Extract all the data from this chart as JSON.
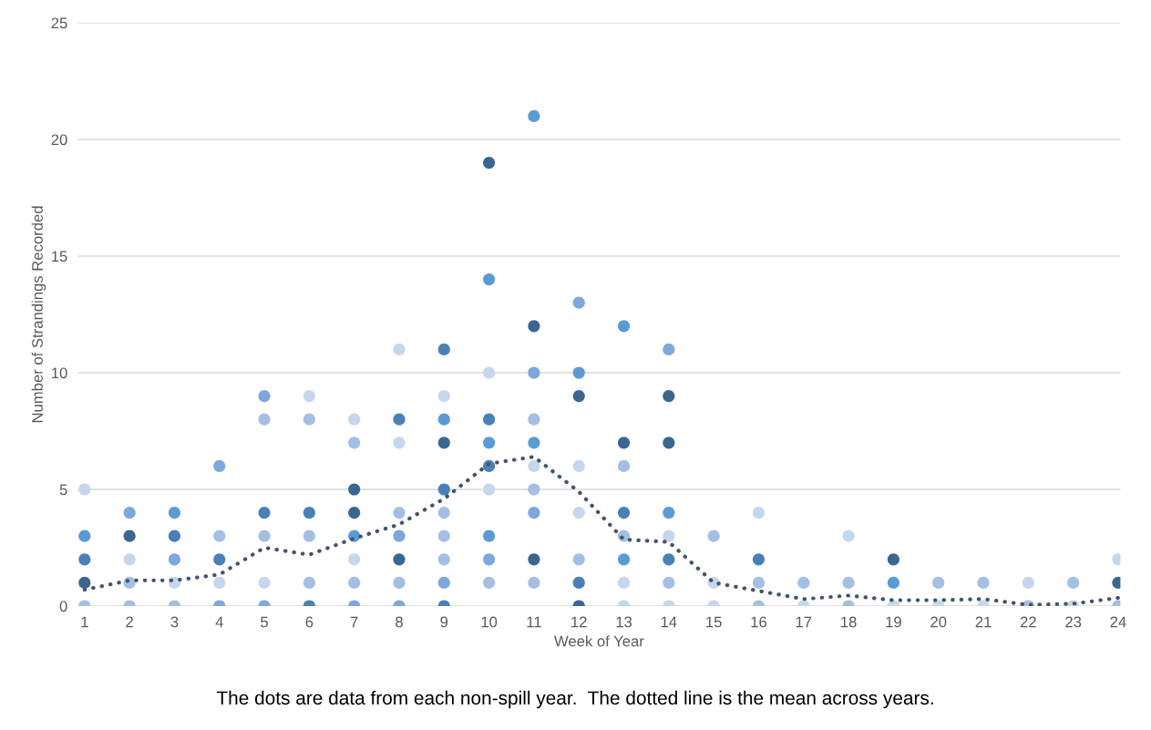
{
  "chart_data": {
    "type": "scatter",
    "xlabel": "Week of Year",
    "ylabel": "Number of Strandings Recorded",
    "annotations": [
      "The dots are data from each non-spill year.  The dotted line is the mean across years."
    ],
    "xlim": [
      0.85,
      24.05
    ],
    "xticks": [
      1,
      2,
      3,
      4,
      5,
      6,
      7,
      8,
      9,
      10,
      11,
      12,
      13,
      14,
      15,
      16,
      17,
      18,
      19,
      20,
      21,
      22,
      23,
      24
    ],
    "ylim": [
      0,
      25
    ],
    "yticks": [
      0,
      5,
      10,
      15,
      20,
      25
    ],
    "grid": "y",
    "legend": false,
    "series": [
      {
        "marker": "circle",
        "x": [
          1,
          1,
          1,
          1,
          1,
          2,
          2,
          2,
          2,
          2,
          3,
          3,
          3,
          3,
          3,
          4,
          4,
          4,
          4,
          4,
          5,
          5,
          5,
          5,
          5,
          5,
          6,
          6,
          6,
          6,
          6,
          6,
          7,
          7,
          7,
          7,
          7,
          7,
          7,
          7,
          8,
          8,
          8,
          8,
          8,
          8,
          8,
          8,
          9,
          9,
          9,
          9,
          9,
          9,
          9,
          9,
          9,
          9,
          10,
          10,
          10,
          10,
          10,
          10,
          10,
          10,
          10,
          10,
          11,
          11,
          11,
          11,
          11,
          11,
          11,
          11,
          11,
          11,
          12,
          12,
          12,
          12,
          12,
          12,
          12,
          12,
          13,
          13,
          13,
          13,
          13,
          13,
          13,
          13,
          14,
          14,
          14,
          14,
          14,
          14,
          14,
          14,
          15,
          15,
          15,
          16,
          16,
          16,
          16,
          17,
          17,
          18,
          18,
          18,
          19,
          19,
          19,
          20,
          20,
          21,
          21,
          22,
          22,
          23,
          23,
          24,
          24,
          24
        ],
        "values": [
          5,
          3,
          2,
          1,
          0,
          4,
          3,
          2,
          1,
          0,
          4,
          3,
          2,
          1,
          0,
          6,
          3,
          2,
          1,
          0,
          9,
          8,
          4,
          3,
          1,
          0,
          9,
          8,
          4,
          3,
          1,
          0,
          8,
          7,
          5,
          4,
          3,
          2,
          1,
          0,
          11,
          8,
          7,
          4,
          3,
          2,
          1,
          0,
          11,
          9,
          8,
          7,
          5,
          4,
          3,
          2,
          1,
          0,
          19,
          14,
          10,
          8,
          7,
          6,
          5,
          3,
          2,
          1,
          21,
          12,
          10,
          8,
          7,
          6,
          5,
          4,
          2,
          1,
          13,
          10,
          9,
          6,
          4,
          2,
          1,
          0,
          12,
          7,
          6,
          4,
          3,
          2,
          1,
          0,
          11,
          9,
          7,
          4,
          3,
          2,
          1,
          0,
          3,
          1,
          0,
          4,
          2,
          1,
          0,
          1,
          0,
          3,
          1,
          0,
          2,
          1,
          0,
          1,
          0,
          1,
          0,
          1,
          0,
          1,
          0,
          2,
          1,
          0
        ],
        "colors": [
          "#c6d6ec",
          "#5b9bd5",
          "#4a80b6",
          "#3b6690",
          "#a4bfe3",
          "#7ea8db",
          "#3b6690",
          "#c6d6ec",
          "#a4bfe3",
          "#a4bfe3",
          "#5b9bd5",
          "#4a80b6",
          "#7ea8db",
          "#c6d6ec",
          "#a4bfe3",
          "#7ea8db",
          "#a4bfe3",
          "#4a80b6",
          "#c6d6ec",
          "#7ea8db",
          "#7ea8db",
          "#a4bfe3",
          "#4a80b6",
          "#a4bfe3",
          "#c6d6ec",
          "#7ea8db",
          "#c6d6ec",
          "#a4bfe3",
          "#4a80b6",
          "#a4bfe3",
          "#a4bfe3",
          "#4a80b6",
          "#c6d6ec",
          "#a4bfe3",
          "#3b6690",
          "#3b6690",
          "#5b9bd5",
          "#c6d6ec",
          "#a4bfe3",
          "#7ea8db",
          "#c6d6ec",
          "#4a80b6",
          "#c6d6ec",
          "#a4bfe3",
          "#7ea8db",
          "#3b6690",
          "#a4bfe3",
          "#7ea8db",
          "#4a80b6",
          "#c6d6ec",
          "#5b9bd5",
          "#3b6690",
          "#4a80b6",
          "#a4bfe3",
          "#a4bfe3",
          "#a4bfe3",
          "#7ea8db",
          "#4a80b6",
          "#3b6690",
          "#5b9bd5",
          "#c6d6ec",
          "#4a80b6",
          "#5b9bd5",
          "#4a80b6",
          "#c6d6ec",
          "#5b9bd5",
          "#7ea8db",
          "#a4bfe3",
          "#5b9bd5",
          "#3b6690",
          "#7ea8db",
          "#a4bfe3",
          "#5b9bd5",
          "#c6d6ec",
          "#a4bfe3",
          "#7ea8db",
          "#3b6690",
          "#a4bfe3",
          "#7ea8db",
          "#5b9bd5",
          "#3b6690",
          "#c6d6ec",
          "#c6d6ec",
          "#a4bfe3",
          "#4a80b6",
          "#3b6690",
          "#5b9bd5",
          "#3b6690",
          "#a4bfe3",
          "#4a80b6",
          "#a4bfe3",
          "#5b9bd5",
          "#c6d6ec",
          "#c6d6ec",
          "#7ea8db",
          "#3b6690",
          "#3b6690",
          "#5b9bd5",
          "#c6d6ec",
          "#4a80b6",
          "#a4bfe3",
          "#c6d6ec",
          "#a4bfe3",
          "#c6d6ec",
          "#c6d6ec",
          "#c6d6ec",
          "#4a80b6",
          "#a4bfe3",
          "#a4bfe3",
          "#a4bfe3",
          "#c6d6ec",
          "#c6d6ec",
          "#a4bfe3",
          "#a4bfe3",
          "#3b6690",
          "#5b9bd5",
          "#c6d6ec",
          "#a4bfe3",
          "#c6d6ec",
          "#a4bfe3",
          "#c6d6ec",
          "#c6d6ec",
          "#a4bfe3",
          "#a4bfe3",
          "#c6d6ec",
          "#c6d6ec",
          "#3b6690",
          "#a4bfe3"
        ]
      },
      {
        "type": "line",
        "color": "#44546a",
        "line_style": "dotted",
        "marker": "none",
        "x": [
          1,
          2,
          3,
          4,
          5,
          6,
          7,
          8,
          9,
          10,
          11,
          12,
          13,
          14,
          15,
          16,
          17,
          18,
          19,
          20,
          21,
          22,
          23,
          24
        ],
        "values": [
          0.7,
          1.1,
          1.1,
          1.35,
          2.5,
          2.2,
          2.9,
          3.5,
          4.6,
          6.1,
          6.4,
          4.9,
          2.85,
          2.75,
          1.0,
          0.65,
          0.3,
          0.45,
          0.25,
          0.25,
          0.3,
          0.05,
          0.1,
          0.35
        ]
      }
    ]
  }
}
